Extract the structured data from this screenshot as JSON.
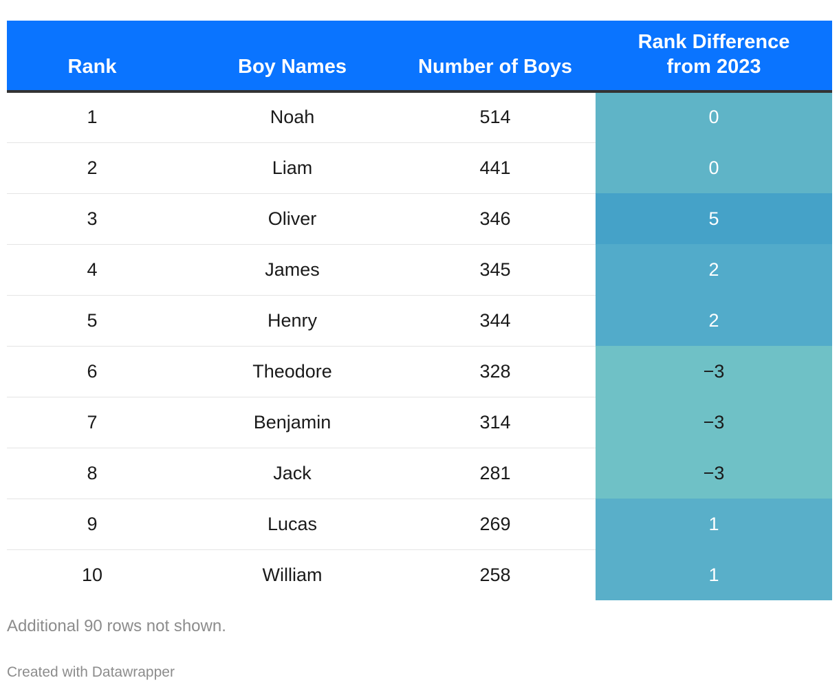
{
  "chart_data": {
    "type": "table",
    "columns": [
      "Rank",
      "Boy Names",
      "Number of Boys",
      "Rank Difference from 2023"
    ],
    "column_lines": {
      "rank_diff": [
        "Rank Difference",
        "from 2023"
      ]
    },
    "rows": [
      {
        "rank": "1",
        "name": "Noah",
        "count": "514",
        "diff": "0",
        "diff_value": 0
      },
      {
        "rank": "2",
        "name": "Liam",
        "count": "441",
        "diff": "0",
        "diff_value": 0
      },
      {
        "rank": "3",
        "name": "Oliver",
        "count": "346",
        "diff": "5",
        "diff_value": 5
      },
      {
        "rank": "4",
        "name": "James",
        "count": "345",
        "diff": "2",
        "diff_value": 2
      },
      {
        "rank": "5",
        "name": "Henry",
        "count": "344",
        "diff": "2",
        "diff_value": 2
      },
      {
        "rank": "6",
        "name": "Theodore",
        "count": "328",
        "diff": "−3",
        "diff_value": -3
      },
      {
        "rank": "7",
        "name": "Benjamin",
        "count": "314",
        "diff": "−3",
        "diff_value": -3
      },
      {
        "rank": "8",
        "name": "Jack",
        "count": "281",
        "diff": "−3",
        "diff_value": -3
      },
      {
        "rank": "9",
        "name": "Lucas",
        "count": "269",
        "diff": "1",
        "diff_value": 1
      },
      {
        "rank": "10",
        "name": "William",
        "count": "258",
        "diff": "1",
        "diff_value": 1
      }
    ],
    "heatmap_colors": {
      "-3": "#6fc1c6",
      "0": "#5fb4c7",
      "1": "#59afc9",
      "2": "#52abca",
      "5": "#45a2c8"
    },
    "header_color": "#0a74ff"
  },
  "footer": {
    "note": "Additional 90 rows not shown.",
    "credit": "Created with Datawrapper"
  }
}
